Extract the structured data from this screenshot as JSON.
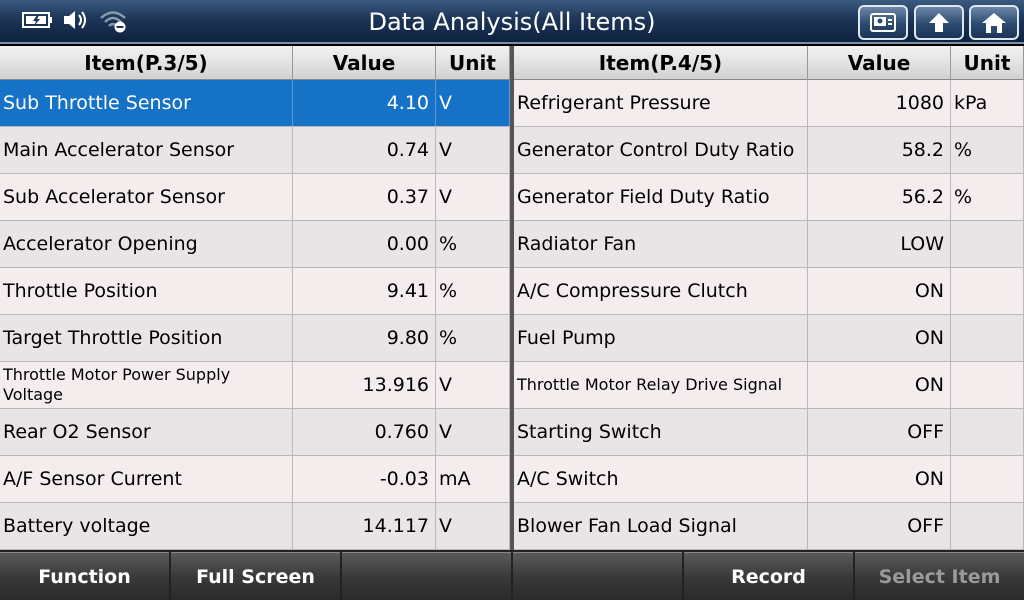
{
  "window": {
    "title": "Data Analysis(All Items)"
  },
  "status_icons": [
    "battery-charging-icon",
    "speaker-icon",
    "wifi-disabled-icon"
  ],
  "nav_buttons": [
    "screenshot-icon",
    "back-arrow-icon",
    "home-icon"
  ],
  "left_table": {
    "headers": {
      "item": "Item(P.3/5)",
      "value": "Value",
      "unit": "Unit"
    },
    "rows": [
      {
        "item": "Sub Throttle Sensor",
        "value": "4.10",
        "unit": "V",
        "selected": true
      },
      {
        "item": "Main Accelerator Sensor",
        "value": "0.74",
        "unit": "V"
      },
      {
        "item": "Sub Accelerator Sensor",
        "value": "0.37",
        "unit": "V"
      },
      {
        "item": "Accelerator Opening",
        "value": "0.00",
        "unit": "%"
      },
      {
        "item": "Throttle Position",
        "value": "9.41",
        "unit": "%"
      },
      {
        "item": "Target Throttle Position",
        "value": "9.80",
        "unit": "%"
      },
      {
        "item": "Throttle Motor Power Supply Voltage",
        "value": "13.916",
        "unit": "V",
        "small": true
      },
      {
        "item": "Rear O2 Sensor",
        "value": "0.760",
        "unit": "V"
      },
      {
        "item": "A/F Sensor Current",
        "value": "-0.03",
        "unit": "mA"
      },
      {
        "item": "Battery voltage",
        "value": "14.117",
        "unit": "V"
      }
    ]
  },
  "right_table": {
    "headers": {
      "item": "Item(P.4/5)",
      "value": "Value",
      "unit": "Unit"
    },
    "rows": [
      {
        "item": "Refrigerant Pressure",
        "value": "1080",
        "unit": "kPa"
      },
      {
        "item": "Generator Control Duty Ratio",
        "value": "58.2",
        "unit": "%"
      },
      {
        "item": "Generator Field Duty Ratio",
        "value": "56.2",
        "unit": "%"
      },
      {
        "item": "Radiator Fan",
        "value": "LOW",
        "unit": ""
      },
      {
        "item": "A/C Compressure Clutch",
        "value": "ON",
        "unit": ""
      },
      {
        "item": "Fuel Pump",
        "value": "ON",
        "unit": ""
      },
      {
        "item": "Throttle Motor Relay Drive Signal",
        "value": "ON",
        "unit": "",
        "small": true
      },
      {
        "item": "Starting Switch",
        "value": "OFF",
        "unit": ""
      },
      {
        "item": "A/C Switch",
        "value": "ON",
        "unit": ""
      },
      {
        "item": "Blower Fan Load Signal",
        "value": "OFF",
        "unit": ""
      }
    ]
  },
  "bottom_bar": {
    "buttons": [
      {
        "label": "Function",
        "enabled": true
      },
      {
        "label": "Full Screen",
        "enabled": true
      },
      {
        "label": "",
        "enabled": true
      },
      {
        "label": "",
        "enabled": true
      },
      {
        "label": "Record",
        "enabled": true
      },
      {
        "label": "Select Item",
        "enabled": false
      }
    ]
  },
  "colors": {
    "selected_row": "#1572c6",
    "title_bar": "#1d3557"
  }
}
